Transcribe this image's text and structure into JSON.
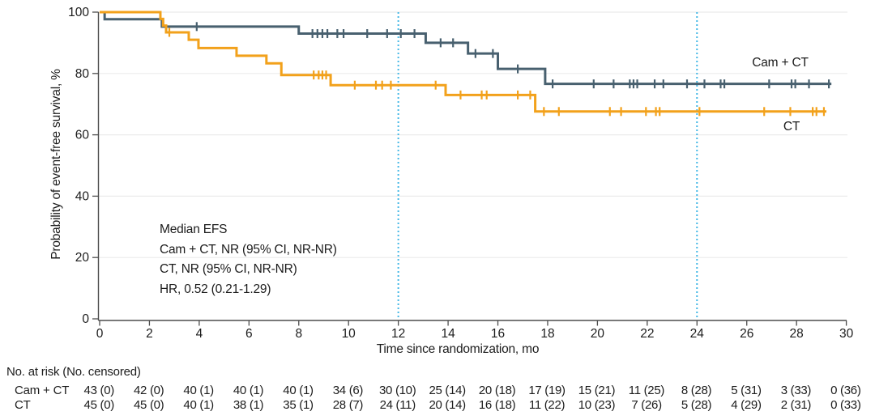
{
  "chart_data": {
    "type": "line",
    "subtype": "kaplan-meier-step",
    "title": "",
    "xlabel": "Time since randomization, mo",
    "ylabel": "Probability of event-free survival, %",
    "xlim": [
      0,
      30
    ],
    "ylim": [
      0,
      100
    ],
    "x_ticks": [
      0,
      2,
      4,
      6,
      8,
      10,
      12,
      14,
      16,
      18,
      20,
      22,
      24,
      26,
      28,
      30
    ],
    "y_ticks": [
      0,
      20,
      40,
      60,
      80,
      100
    ],
    "grid": "horizontal",
    "grid_color": "#ebebeb",
    "axis_color": "#4d4d4d",
    "reference_lines_x": [
      12,
      24
    ],
    "reference_line_color": "#45b8e6",
    "annotation_lines": [
      "Median EFS",
      "Cam + CT, NR (95% CI, NR-NR)",
      "CT, NR (95% CI, NR-NR)",
      "HR, 0.52 (0.21-1.29)"
    ],
    "series": [
      {
        "name": "Cam + CT",
        "label": "Cam + CT",
        "color": "#48606f",
        "steps": [
          [
            0,
            100
          ],
          [
            0.2,
            97.7
          ],
          [
            2.5,
            95.3
          ],
          [
            8.0,
            93.0
          ],
          [
            13.1,
            90.0
          ],
          [
            14.8,
            86.5
          ],
          [
            16.0,
            81.5
          ],
          [
            17.9,
            76.6
          ]
        ],
        "end_x": 29.4,
        "censor_times": [
          3.9,
          8.55,
          8.75,
          8.95,
          9.15,
          9.55,
          9.8,
          10.75,
          11.55,
          12.1,
          12.65,
          13.7,
          14.2,
          15.1,
          15.8,
          16.8,
          18.2,
          19.85,
          20.65,
          21.3,
          21.45,
          21.6,
          22.3,
          22.65,
          23.6,
          24.3,
          24.95,
          25.1,
          26.9,
          27.8,
          27.95,
          28.5,
          29.3
        ]
      },
      {
        "name": "CT",
        "label": "CT",
        "color": "#f2a11b",
        "steps": [
          [
            0,
            100
          ],
          [
            2.44,
            97.8
          ],
          [
            2.55,
            95.6
          ],
          [
            2.67,
            93.4
          ],
          [
            3.58,
            91.0
          ],
          [
            3.97,
            88.3
          ],
          [
            5.5,
            85.8
          ],
          [
            6.7,
            83.3
          ],
          [
            7.3,
            79.5
          ],
          [
            9.28,
            76.2
          ],
          [
            13.9,
            73.0
          ],
          [
            17.5,
            67.6
          ]
        ],
        "end_x": 29.2,
        "censor_times": [
          2.8,
          8.6,
          8.8,
          8.95,
          9.1,
          10.25,
          11.1,
          11.35,
          11.7,
          13.5,
          14.5,
          15.35,
          15.55,
          16.8,
          17.3,
          17.85,
          18.45,
          20.5,
          20.95,
          21.95,
          22.35,
          22.5,
          24.1,
          26.7,
          27.75,
          28.65,
          28.8,
          29.1
        ]
      }
    ]
  },
  "risk_table": {
    "title": "No. at risk (No. censored)",
    "rows": [
      {
        "label": "Cam + CT",
        "values": [
          "43 (0)",
          "42 (0)",
          "40 (1)",
          "40 (1)",
          "40 (1)",
          "34 (6)",
          "30 (10)",
          "25 (14)",
          "20 (18)",
          "17 (19)",
          "15 (21)",
          "11 (25)",
          "8 (28)",
          "5 (31)",
          "3 (33)",
          "0 (36)"
        ]
      },
      {
        "label": "CT",
        "values": [
          "45 (0)",
          "45 (0)",
          "40 (1)",
          "38 (1)",
          "35 (1)",
          "28 (7)",
          "24 (11)",
          "20 (14)",
          "16 (18)",
          "11 (22)",
          "10 (23)",
          "7 (26)",
          "5 (28)",
          "4 (29)",
          "2 (31)",
          "0 (33)"
        ]
      }
    ]
  }
}
